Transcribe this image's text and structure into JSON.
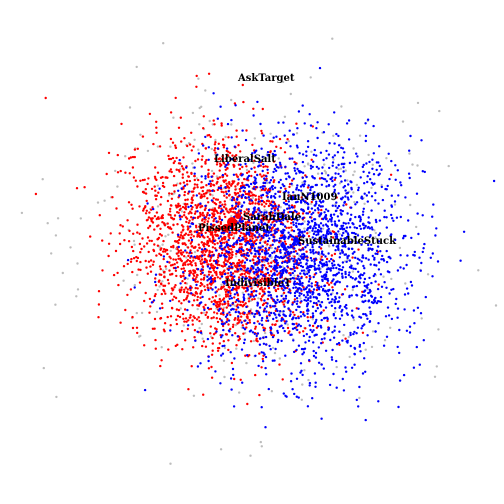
{
  "network": {
    "colors": {
      "red": "#ff0000",
      "blue": "#0000ff",
      "gray": "#bdbdbd"
    },
    "labels": [
      {
        "id": "ask-target",
        "text": "AskTarget"
      },
      {
        "id": "liberal-salt",
        "text": "LiberalSalt"
      },
      {
        "id": "ian-n1009",
        "text": "IanN1009"
      },
      {
        "id": "sarahdale",
        "text": "SarahDale"
      },
      {
        "id": "pissed-planet",
        "text": "PissedPlanet"
      },
      {
        "id": "sustainable-stuck",
        "text": "SustainableStuck"
      },
      {
        "id": "indivisible",
        "text": "IndivisibleT"
      }
    ]
  }
}
